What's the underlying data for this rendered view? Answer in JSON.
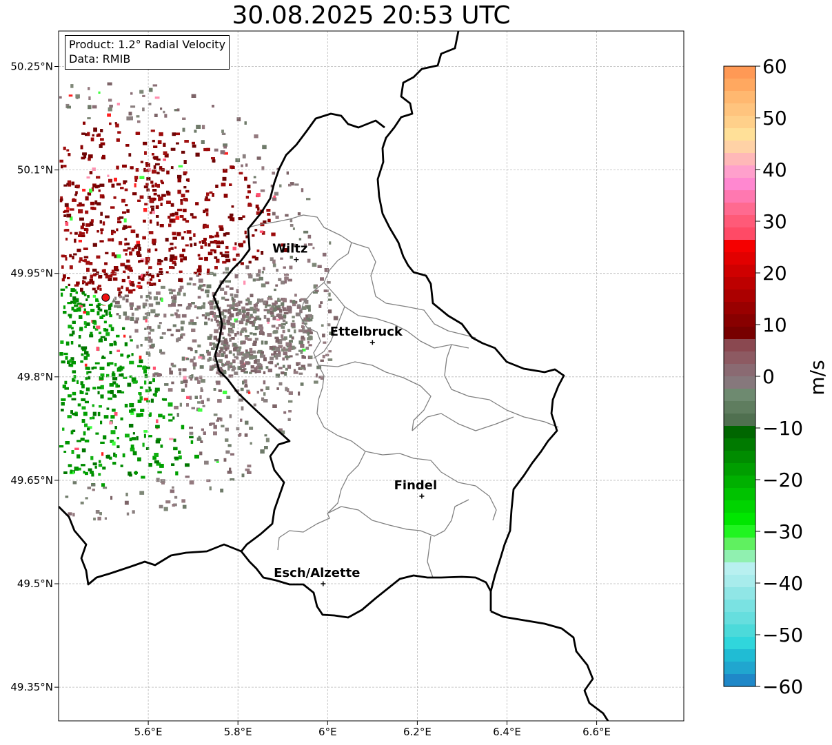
{
  "title": "30.08.2025 20:53 UTC",
  "info": {
    "product": "Product: 1.2° Radial Velocity",
    "source": "Data: RMIB"
  },
  "axes": {
    "lon_ticks": [
      "5.6°E",
      "5.8°E",
      "6°E",
      "6.2°E",
      "6.4°E",
      "6.6°E"
    ],
    "lat_ticks": [
      "50.25°N",
      "50.1°N",
      "49.95°N",
      "49.8°N",
      "49.65°N",
      "49.5°N",
      "49.35°N"
    ],
    "grid": true
  },
  "cities": [
    {
      "name": "Wiltz",
      "lon": 5.93,
      "lat": 49.97
    },
    {
      "name": "Ettelbruck",
      "lon": 6.1,
      "lat": 49.85
    },
    {
      "name": "Findel",
      "lon": 6.21,
      "lat": 49.627
    },
    {
      "name": "Esch/Alzette",
      "lon": 5.99,
      "lat": 49.5
    }
  ],
  "radar_site": {
    "lon": 5.505,
    "lat": 49.915,
    "color": "#ee1111"
  },
  "colorbar": {
    "label": "m/s",
    "min": -60,
    "max": 60,
    "ticks": [
      "60",
      "50",
      "40",
      "30",
      "20",
      "10",
      "0",
      "−10",
      "−20",
      "−30",
      "−40",
      "−50",
      "−60"
    ]
  },
  "colors": {
    "border_country": "#000000",
    "border_canton": "#808080",
    "grid": "#b0b0b0"
  }
}
